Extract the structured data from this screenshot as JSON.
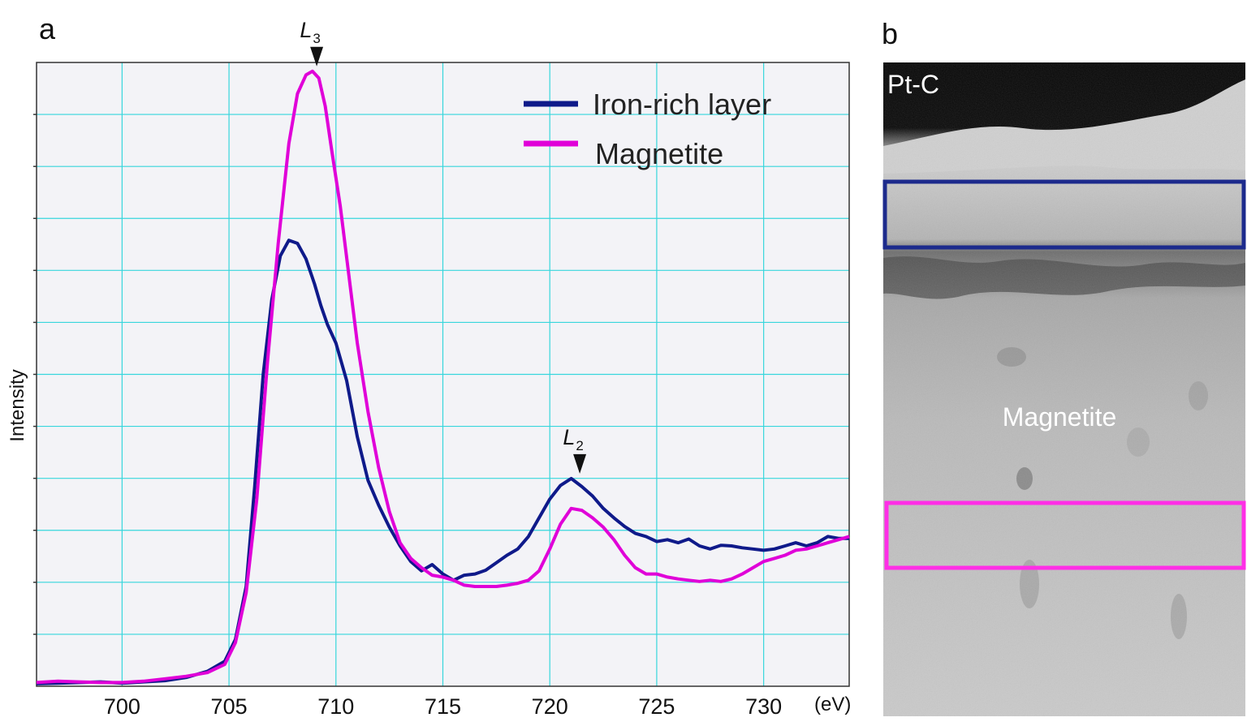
{
  "panels": {
    "a": "a",
    "b": "b"
  },
  "chart_data": {
    "type": "line",
    "xlabel": "(eV)",
    "ylabel": "Intensity",
    "xlim": [
      696.0,
      734.0
    ],
    "ylim": [
      0.0,
      1.0
    ],
    "x_ticks": [
      700,
      705,
      710,
      715,
      720,
      725,
      730
    ],
    "grid": true,
    "legend_position": "top-right",
    "series": [
      {
        "name": "Iron-rich layer",
        "color": "#0f1a8a",
        "x": [
          696.0,
          697.0,
          698.0,
          699.0,
          700.0,
          701.0,
          702.0,
          703.0,
          704.0,
          704.8,
          705.3,
          705.8,
          706.2,
          706.6,
          707.0,
          707.4,
          707.8,
          708.2,
          708.6,
          709.0,
          709.3,
          709.6,
          710.0,
          710.5,
          711.0,
          711.5,
          712.0,
          712.5,
          713.0,
          713.5,
          714.0,
          714.5,
          715.0,
          715.5,
          716.0,
          716.5,
          717.0,
          717.5,
          718.0,
          718.5,
          719.0,
          719.5,
          720.0,
          720.5,
          721.0,
          721.5,
          722.0,
          722.5,
          723.0,
          723.5,
          724.0,
          724.5,
          725.0,
          725.5,
          726.0,
          726.5,
          727.0,
          727.5,
          728.0,
          728.5,
          729.0,
          729.5,
          730.0,
          730.5,
          731.0,
          731.5,
          732.0,
          732.5,
          733.0,
          733.5,
          734.0
        ],
        "y": [
          0.004,
          0.005,
          0.006,
          0.007,
          0.005,
          0.007,
          0.009,
          0.014,
          0.024,
          0.04,
          0.075,
          0.16,
          0.32,
          0.5,
          0.62,
          0.69,
          0.715,
          0.71,
          0.685,
          0.645,
          0.61,
          0.58,
          0.55,
          0.49,
          0.4,
          0.33,
          0.29,
          0.255,
          0.225,
          0.2,
          0.185,
          0.195,
          0.18,
          0.17,
          0.178,
          0.18,
          0.186,
          0.198,
          0.21,
          0.22,
          0.24,
          0.27,
          0.3,
          0.322,
          0.333,
          0.32,
          0.305,
          0.285,
          0.27,
          0.256,
          0.245,
          0.24,
          0.232,
          0.235,
          0.23,
          0.236,
          0.225,
          0.22,
          0.226,
          0.225,
          0.222,
          0.22,
          0.218,
          0.22,
          0.225,
          0.23,
          0.225,
          0.23,
          0.24,
          0.237,
          0.237
        ]
      },
      {
        "name": "Magnetite",
        "color": "#e000d8",
        "x": [
          696.0,
          697.0,
          698.0,
          699.0,
          700.0,
          701.0,
          702.0,
          703.0,
          704.0,
          704.8,
          705.3,
          705.8,
          706.3,
          706.8,
          707.3,
          707.8,
          708.2,
          708.6,
          708.9,
          709.2,
          709.5,
          709.8,
          710.2,
          710.6,
          711.0,
          711.5,
          712.0,
          712.5,
          713.0,
          713.5,
          714.0,
          714.5,
          715.0,
          715.5,
          716.0,
          716.5,
          717.0,
          717.5,
          718.0,
          718.5,
          719.0,
          719.5,
          720.0,
          720.5,
          721.0,
          721.5,
          722.0,
          722.5,
          723.0,
          723.5,
          724.0,
          724.5,
          725.0,
          725.5,
          726.0,
          726.5,
          727.0,
          727.5,
          728.0,
          728.5,
          729.0,
          729.5,
          730.0,
          730.5,
          731.0,
          731.5,
          732.0,
          732.5,
          733.0,
          733.5,
          734.0
        ],
        "y": [
          0.006,
          0.008,
          0.007,
          0.006,
          0.006,
          0.008,
          0.012,
          0.016,
          0.022,
          0.035,
          0.07,
          0.15,
          0.3,
          0.52,
          0.71,
          0.87,
          0.95,
          0.98,
          0.986,
          0.975,
          0.93,
          0.86,
          0.77,
          0.66,
          0.55,
          0.44,
          0.35,
          0.28,
          0.23,
          0.205,
          0.19,
          0.178,
          0.175,
          0.17,
          0.162,
          0.16,
          0.16,
          0.16,
          0.162,
          0.165,
          0.17,
          0.185,
          0.22,
          0.26,
          0.285,
          0.282,
          0.27,
          0.255,
          0.235,
          0.21,
          0.19,
          0.18,
          0.18,
          0.175,
          0.172,
          0.17,
          0.168,
          0.17,
          0.168,
          0.172,
          0.18,
          0.19,
          0.2,
          0.205,
          0.21,
          0.218,
          0.22,
          0.225,
          0.23,
          0.235,
          0.24
        ]
      }
    ],
    "annotations": [
      {
        "label": "L",
        "sub": "3",
        "x": 709.1,
        "y": 0.986
      },
      {
        "label": "L",
        "sub": "2",
        "x": 721.4,
        "y": 0.333
      }
    ]
  },
  "micrograph": {
    "label_top": "Pt-C",
    "label_center": "Magnetite",
    "box_top_color": "#1c2a8c",
    "box_bottom_color": "#ff2ee6"
  }
}
